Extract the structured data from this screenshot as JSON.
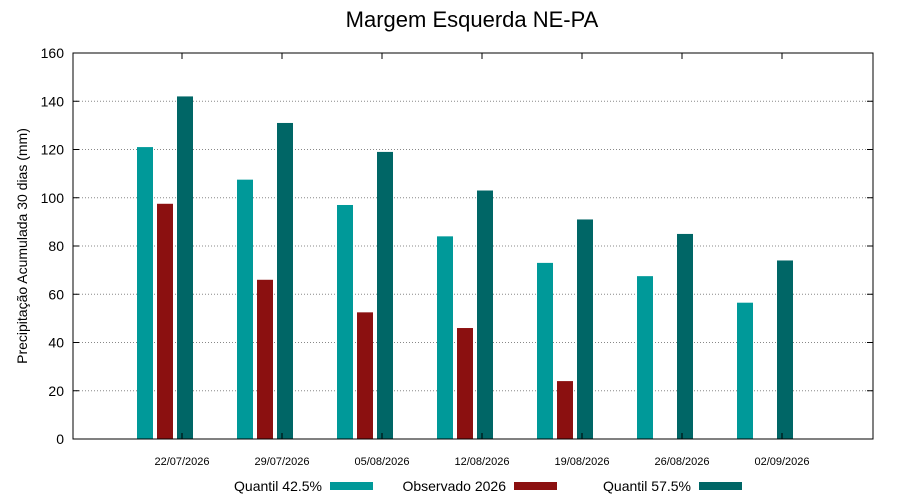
{
  "chart_data": {
    "type": "bar",
    "title": "Margem Esquerda NE-PA",
    "xlabel": "",
    "ylabel": "Precipitação Acumulada 30 dias (mm)",
    "ylim": [
      0,
      160
    ],
    "yticks": [
      0,
      20,
      40,
      60,
      80,
      100,
      120,
      140,
      160
    ],
    "grid": true,
    "legend_position": "bottom",
    "categories": [
      "22/07/2026",
      "29/07/2026",
      "05/08/2026",
      "12/08/2026",
      "19/08/2026",
      "26/08/2026",
      "02/09/2026"
    ],
    "series": [
      {
        "name": "Quantil 42.5%",
        "color": "#009999",
        "values": [
          121,
          107.5,
          97,
          84,
          73,
          67.5,
          56.5
        ]
      },
      {
        "name": "Observado 2026",
        "color": "#8b1010",
        "values": [
          97.5,
          66,
          52.5,
          46,
          24,
          null,
          null
        ]
      },
      {
        "name": "Quantil 57.5%",
        "color": "#006666",
        "values": [
          142,
          131,
          119,
          103,
          91,
          85,
          74
        ]
      }
    ]
  }
}
